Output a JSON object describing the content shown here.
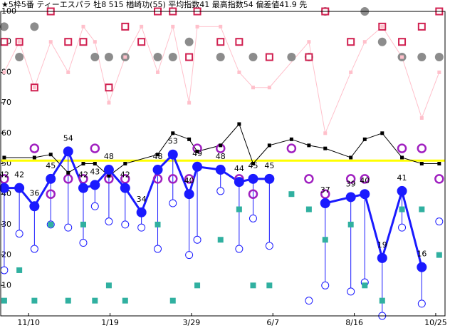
{
  "chart_data": {
    "type": "line",
    "title": "★5枠5番 ティーエスパラ 牡8 515 楢崎功(55) 平均指数41 最高指数54 偏差値41.9 先",
    "xlim": [
      -24,
      358
    ],
    "ylim": [
      0,
      100
    ],
    "xticks": [
      {
        "value": 0,
        "label": "11/10"
      },
      {
        "value": 70,
        "label": "1/19"
      },
      {
        "value": 140,
        "label": "3/29"
      },
      {
        "value": 210,
        "label": "6/7"
      },
      {
        "value": 280,
        "label": "8/16"
      },
      {
        "value": 350,
        "label": "10/25"
      }
    ],
    "yticks": [
      10,
      20,
      30,
      40,
      50,
      60,
      70,
      80,
      90,
      100
    ],
    "reference_line": 51,
    "reference_color": "#ffff00",
    "series": [
      {
        "color": "#1a1aff",
        "line": true,
        "marker": "circle",
        "labels": true,
        "x": [
          -21,
          -8,
          5,
          19,
          34,
          47,
          57,
          69,
          83,
          97,
          111,
          124,
          138,
          145,
          165,
          181,
          193,
          207,
          241,
          255,
          277,
          289,
          304,
          321,
          338
        ],
        "values": [
          42,
          42,
          36,
          45,
          54,
          42,
          43,
          48,
          42,
          34,
          48,
          53,
          40,
          49,
          48,
          44,
          45,
          45,
          null,
          37,
          39,
          40,
          19,
          41,
          16
        ]
      },
      {
        "color": "#000000",
        "line": true,
        "marker": "square-small",
        "labels": false,
        "x": [
          -21,
          5,
          19,
          34,
          47,
          57,
          69,
          83,
          111,
          124,
          138,
          145,
          165,
          181,
          193,
          207,
          226,
          241,
          255,
          277,
          289,
          304,
          321,
          338,
          353
        ],
        "values": [
          52,
          52,
          53,
          47,
          50,
          50,
          46,
          50,
          53,
          60,
          58,
          54,
          56,
          63,
          50,
          56,
          58,
          56,
          55,
          52,
          58,
          60,
          52,
          50,
          50
        ]
      },
      {
        "color": "#ffc0cb",
        "line": true,
        "marker": "square-small",
        "labels": false,
        "x": [
          -21,
          -8,
          5,
          19,
          34,
          47,
          57,
          69,
          83,
          97,
          111,
          124,
          138,
          145,
          165,
          181,
          193,
          207,
          241,
          255,
          277,
          289,
          304,
          321,
          338,
          353
        ],
        "values": [
          80,
          90,
          75,
          90,
          80,
          95,
          90,
          70,
          85,
          95,
          80,
          95,
          70,
          95,
          95,
          80,
          75,
          75,
          90,
          60,
          80,
          90,
          95,
          85,
          65,
          80
        ]
      },
      {
        "color": "#d02050",
        "line": false,
        "marker": "square-open",
        "labels": false,
        "x": [
          -21,
          -8,
          5,
          19,
          34,
          47,
          69,
          83,
          97,
          111,
          124,
          138,
          145,
          165,
          181,
          207,
          241,
          255,
          277,
          304,
          321,
          338,
          353
        ],
        "values": [
          90,
          90,
          75,
          100,
          90,
          90,
          75,
          95,
          90,
          100,
          100,
          85,
          100,
          90,
          90,
          85,
          85,
          100,
          90,
          95,
          90,
          95,
          100
        ]
      },
      {
        "color": "#8c8c8c",
        "line": false,
        "marker": "circle-gray",
        "labels": false,
        "x": [
          -21,
          -8,
          5,
          57,
          69,
          83,
          111,
          124,
          138,
          165,
          193,
          226,
          241,
          255,
          289,
          304,
          321,
          338,
          353
        ],
        "values": [
          95,
          85,
          95,
          85,
          85,
          85,
          85,
          85,
          90,
          85,
          85,
          85,
          85,
          100,
          100,
          90,
          85,
          85,
          85
        ]
      },
      {
        "color": "#a020c0",
        "line": false,
        "marker": "ring",
        "labels": false,
        "x": [
          -21,
          5,
          19,
          34,
          47,
          57,
          69,
          83,
          111,
          124,
          138,
          145,
          165,
          181,
          193,
          207,
          226,
          241,
          255,
          277,
          289,
          321,
          338,
          353
        ],
        "values": [
          45,
          55,
          40,
          45,
          45,
          55,
          45,
          45,
          45,
          45,
          45,
          55,
          55,
          45,
          40,
          45,
          55,
          45,
          40,
          45,
          45,
          55,
          55,
          45
        ]
      },
      {
        "color": "#30b0a0",
        "line": false,
        "marker": "square",
        "labels": false,
        "x": [
          -21,
          -8,
          5,
          19,
          34,
          47,
          57,
          69,
          83,
          111,
          124,
          145,
          165,
          181,
          193,
          207,
          226,
          241,
          255,
          277,
          289,
          304,
          321,
          338,
          353
        ],
        "values": [
          5,
          15,
          5,
          30,
          5,
          30,
          5,
          10,
          5,
          30,
          5,
          10,
          25,
          35,
          10,
          10,
          40,
          35,
          25,
          30,
          10,
          5,
          35,
          35,
          20
        ]
      },
      {
        "color": "#1a1aff",
        "line": false,
        "marker": "circle-open",
        "labels": false,
        "x": [
          -21,
          -8,
          5,
          19,
          34,
          47,
          57,
          69,
          83,
          97,
          111,
          124,
          138,
          145,
          165,
          181,
          193,
          207,
          241,
          255,
          277,
          289,
          304,
          321,
          338,
          353
        ],
        "values": [
          15,
          27,
          22,
          30,
          29,
          24,
          36,
          31,
          30,
          29,
          22,
          37,
          20,
          25,
          41,
          22,
          32,
          23,
          5,
          10,
          8,
          11,
          0,
          29,
          4,
          31
        ]
      }
    ]
  }
}
